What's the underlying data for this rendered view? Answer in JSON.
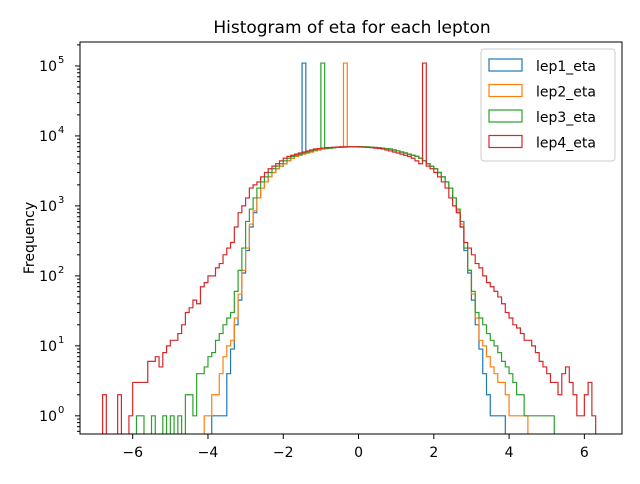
{
  "chart_data": {
    "type": "step-histogram",
    "title": "Histogram of eta for each lepton",
    "xlabel": "",
    "ylabel": "Frequency",
    "yscale": "log",
    "xlim": [
      -7.4,
      7.0
    ],
    "ylim": [
      0.55,
      220000
    ],
    "x_ticks": [
      -6,
      -4,
      -2,
      0,
      2,
      4,
      6
    ],
    "x_tick_labels": [
      "−6",
      "−4",
      "−2",
      "0",
      "2",
      "4",
      "6"
    ],
    "y_ticks": [
      1,
      10,
      100,
      1000,
      10000,
      100000
    ],
    "y_tick_labels": [
      "10",
      "10",
      "10",
      "10",
      "10",
      "10"
    ],
    "y_tick_exponents": [
      "0",
      "1",
      "2",
      "3",
      "4",
      "5"
    ],
    "legend_position": "top-right",
    "series": [
      {
        "name": "lep1_eta",
        "color": "#1f77b4",
        "x": [
          -3.9,
          -3.8,
          -3.7,
          -3.6,
          -3.5,
          -3.4,
          -3.3,
          -3.2,
          -3.1,
          -3.0,
          -2.9,
          -2.8,
          -2.7,
          -2.6,
          -2.5,
          -2.4,
          -2.3,
          -2.2,
          -2.1,
          -2.0,
          -1.9,
          -1.8,
          -1.7,
          -1.6,
          -1.5,
          -1.4,
          -1.3,
          -1.2,
          -1.1,
          -1.0,
          -0.9,
          -0.8,
          -0.7,
          -0.6,
          -0.5,
          -0.4,
          -0.3,
          -0.2,
          -0.1,
          0.0,
          0.1,
          0.2,
          0.3,
          0.4,
          0.5,
          0.6,
          0.7,
          0.8,
          0.9,
          1.0,
          1.1,
          1.2,
          1.3,
          1.4,
          1.5,
          1.6,
          1.7,
          1.8,
          1.9,
          2.0,
          2.1,
          2.2,
          2.3,
          2.4,
          2.5,
          2.6,
          2.7,
          2.8,
          2.9,
          3.0,
          3.1,
          3.2,
          3.3,
          3.4,
          3.5,
          3.6,
          3.7,
          3.8,
          3.9
        ],
        "values": [
          1,
          1,
          1,
          1,
          4,
          9,
          20,
          45,
          110,
          230,
          500,
          800,
          1300,
          1800,
          2200,
          2600,
          3000,
          3400,
          3700,
          4000,
          4400,
          4800,
          5100,
          5300,
          110000,
          5700,
          5900,
          6100,
          6300,
          6500,
          6600,
          6700,
          6800,
          6850,
          6900,
          6950,
          7000,
          7000,
          7000,
          7000,
          7000,
          6950,
          6900,
          6850,
          6800,
          6700,
          6600,
          6500,
          6300,
          6100,
          5900,
          5700,
          5500,
          5300,
          5100,
          4800,
          4400,
          4000,
          3700,
          3400,
          3000,
          2600,
          2200,
          1800,
          1300,
          800,
          500,
          230,
          110,
          45,
          20,
          9,
          4,
          2,
          1,
          1,
          1,
          1,
          0
        ]
      },
      {
        "name": "lep2_eta",
        "color": "#ff7f0e",
        "x": [
          -4.1,
          -4.0,
          -3.9,
          -3.8,
          -3.7,
          -3.6,
          -3.5,
          -3.4,
          -3.3,
          -3.2,
          -3.1,
          -3.0,
          -2.9,
          -2.8,
          -2.7,
          -2.6,
          -2.5,
          -2.4,
          -2.3,
          -2.2,
          -2.1,
          -2.0,
          -1.9,
          -1.8,
          -1.7,
          -1.6,
          -1.5,
          -1.4,
          -1.3,
          -1.2,
          -1.1,
          -1.0,
          -0.9,
          -0.8,
          -0.7,
          -0.6,
          -0.5,
          -0.4,
          -0.3,
          -0.2,
          -0.1,
          0.0,
          0.1,
          0.2,
          0.3,
          0.4,
          0.5,
          0.6,
          0.7,
          0.8,
          0.9,
          1.0,
          1.1,
          1.2,
          1.3,
          1.4,
          1.5,
          1.6,
          1.7,
          1.8,
          1.9,
          2.0,
          2.1,
          2.2,
          2.3,
          2.4,
          2.5,
          2.6,
          2.7,
          2.8,
          2.9,
          3.0,
          3.1,
          3.2,
          3.3,
          3.4,
          3.5,
          3.6,
          3.7,
          3.8,
          3.9,
          4.0,
          4.1,
          4.2,
          4.3,
          4.4,
          4.5
        ],
        "values": [
          1,
          1,
          2,
          2,
          4,
          7,
          10,
          12,
          25,
          55,
          120,
          250,
          550,
          850,
          1300,
          1800,
          2200,
          2600,
          3000,
          3400,
          3700,
          4000,
          4400,
          4800,
          5100,
          5300,
          5500,
          5700,
          5900,
          6100,
          6300,
          6500,
          6600,
          6700,
          6800,
          6850,
          6900,
          110000,
          7000,
          7000,
          7000,
          7000,
          7000,
          6950,
          6900,
          6850,
          6800,
          6700,
          6600,
          6500,
          6300,
          6100,
          5900,
          5700,
          5500,
          5300,
          5100,
          4800,
          4400,
          4000,
          3700,
          3400,
          3000,
          2600,
          2200,
          1800,
          1300,
          850,
          550,
          250,
          120,
          55,
          25,
          12,
          10,
          7,
          5,
          4,
          3,
          3,
          2,
          1,
          1,
          1,
          1,
          1,
          0
        ]
      },
      {
        "name": "lep3_eta",
        "color": "#2ca02c",
        "x": [
          -5.9,
          -5.8,
          -5.7,
          -5.6,
          -5.5,
          -5.4,
          -5.3,
          -5.2,
          -5.1,
          -5.0,
          -4.9,
          -4.8,
          -4.7,
          -4.6,
          -4.5,
          -4.4,
          -4.3,
          -4.2,
          -4.1,
          -4.0,
          -3.9,
          -3.8,
          -3.7,
          -3.6,
          -3.5,
          -3.4,
          -3.3,
          -3.2,
          -3.1,
          -3.0,
          -2.9,
          -2.8,
          -2.7,
          -2.6,
          -2.5,
          -2.4,
          -2.3,
          -2.2,
          -2.1,
          -2.0,
          -1.9,
          -1.8,
          -1.7,
          -1.6,
          -1.5,
          -1.4,
          -1.3,
          -1.2,
          -1.1,
          -1.0,
          -0.9,
          -0.8,
          -0.7,
          -0.6,
          -0.5,
          -0.4,
          -0.3,
          -0.2,
          -0.1,
          0.0,
          0.1,
          0.2,
          0.3,
          0.4,
          0.5,
          0.6,
          0.7,
          0.8,
          0.9,
          1.0,
          1.1,
          1.2,
          1.3,
          1.4,
          1.5,
          1.6,
          1.7,
          1.8,
          1.9,
          2.0,
          2.1,
          2.2,
          2.3,
          2.4,
          2.5,
          2.6,
          2.7,
          2.8,
          2.9,
          3.0,
          3.1,
          3.2,
          3.3,
          3.4,
          3.5,
          3.6,
          3.7,
          3.8,
          3.9,
          4.0,
          4.1,
          4.2,
          4.3,
          4.4,
          4.5,
          4.6,
          4.7,
          4.8,
          4.9,
          5.0,
          5.1,
          5.2
        ],
        "values": [
          1,
          1,
          0,
          0,
          1,
          0,
          0,
          1,
          0,
          1,
          0,
          1,
          0,
          2,
          2,
          1,
          4,
          4,
          5,
          7,
          8,
          12,
          15,
          20,
          25,
          30,
          60,
          120,
          250,
          600,
          900,
          1300,
          1800,
          2200,
          2600,
          3000,
          3400,
          3700,
          4000,
          4400,
          4800,
          5100,
          5300,
          5500,
          5700,
          5900,
          6100,
          6300,
          6500,
          110000,
          6600,
          6700,
          6800,
          6850,
          6900,
          6950,
          7000,
          7000,
          7000,
          7000,
          7000,
          6950,
          6900,
          6850,
          6800,
          6700,
          6600,
          6500,
          6300,
          6100,
          5900,
          5700,
          5500,
          5300,
          5100,
          4800,
          4400,
          4000,
          3700,
          3400,
          3000,
          2600,
          2200,
          1800,
          1300,
          900,
          600,
          250,
          120,
          60,
          30,
          25,
          20,
          15,
          12,
          10,
          8,
          6,
          5,
          4,
          3,
          2,
          2,
          1,
          1,
          1,
          1,
          1,
          1,
          1,
          1,
          0
        ]
      },
      {
        "name": "lep4_eta",
        "color": "#d62728",
        "x": [
          -6.8,
          -6.7,
          -6.6,
          -6.5,
          -6.4,
          -6.3,
          -6.2,
          -6.1,
          -6.0,
          -5.9,
          -5.8,
          -5.7,
          -5.6,
          -5.5,
          -5.4,
          -5.3,
          -5.2,
          -5.1,
          -5.0,
          -4.9,
          -4.8,
          -4.7,
          -4.6,
          -4.5,
          -4.4,
          -4.3,
          -4.2,
          -4.1,
          -4.0,
          -3.9,
          -3.8,
          -3.7,
          -3.6,
          -3.5,
          -3.4,
          -3.3,
          -3.2,
          -3.1,
          -3.0,
          -2.9,
          -2.8,
          -2.7,
          -2.6,
          -2.5,
          -2.4,
          -2.3,
          -2.2,
          -2.1,
          -2.0,
          -1.9,
          -1.8,
          -1.7,
          -1.6,
          -1.5,
          -1.4,
          -1.3,
          -1.2,
          -1.1,
          -1.0,
          -0.9,
          -0.8,
          -0.7,
          -0.6,
          -0.5,
          -0.4,
          -0.3,
          -0.2,
          -0.1,
          0.0,
          0.1,
          0.2,
          0.3,
          0.4,
          0.5,
          0.6,
          0.7,
          0.8,
          0.9,
          1.0,
          1.1,
          1.2,
          1.3,
          1.4,
          1.5,
          1.6,
          1.7,
          1.8,
          1.9,
          2.0,
          2.1,
          2.2,
          2.3,
          2.4,
          2.5,
          2.6,
          2.7,
          2.8,
          2.9,
          3.0,
          3.1,
          3.2,
          3.3,
          3.4,
          3.5,
          3.6,
          3.7,
          3.8,
          3.9,
          4.0,
          4.1,
          4.2,
          4.3,
          4.4,
          4.5,
          4.6,
          4.7,
          4.8,
          4.9,
          5.0,
          5.1,
          5.2,
          5.3,
          5.4,
          5.5,
          5.6,
          5.7,
          5.8,
          5.9,
          6.0,
          6.1,
          6.2,
          6.3
        ],
        "values": [
          2,
          0,
          0,
          0,
          2,
          0,
          0,
          1,
          3,
          3,
          3,
          3,
          6,
          6,
          7,
          5,
          8,
          10,
          12,
          12,
          15,
          20,
          30,
          35,
          45,
          40,
          70,
          80,
          100,
          100,
          130,
          150,
          200,
          250,
          300,
          500,
          800,
          1000,
          1300,
          1800,
          2000,
          2200,
          2600,
          3000,
          3400,
          3700,
          4000,
          4400,
          4800,
          5100,
          5300,
          5500,
          5700,
          5900,
          6100,
          6300,
          6500,
          6600,
          6700,
          6800,
          6850,
          6900,
          6950,
          7000,
          7000,
          7000,
          7000,
          7000,
          6950,
          6900,
          6850,
          6800,
          6700,
          6600,
          6500,
          6300,
          6100,
          5900,
          5700,
          5500,
          5300,
          5100,
          4800,
          4400,
          4000,
          110000,
          3700,
          3400,
          3000,
          2600,
          2200,
          1800,
          1300,
          1000,
          800,
          500,
          300,
          250,
          200,
          150,
          130,
          100,
          80,
          70,
          60,
          50,
          40,
          30,
          25,
          20,
          18,
          15,
          12,
          12,
          10,
          8,
          6,
          5,
          4,
          3,
          3,
          2,
          4,
          5,
          3,
          2,
          1,
          1,
          2,
          3,
          1,
          0
        ]
      }
    ]
  }
}
